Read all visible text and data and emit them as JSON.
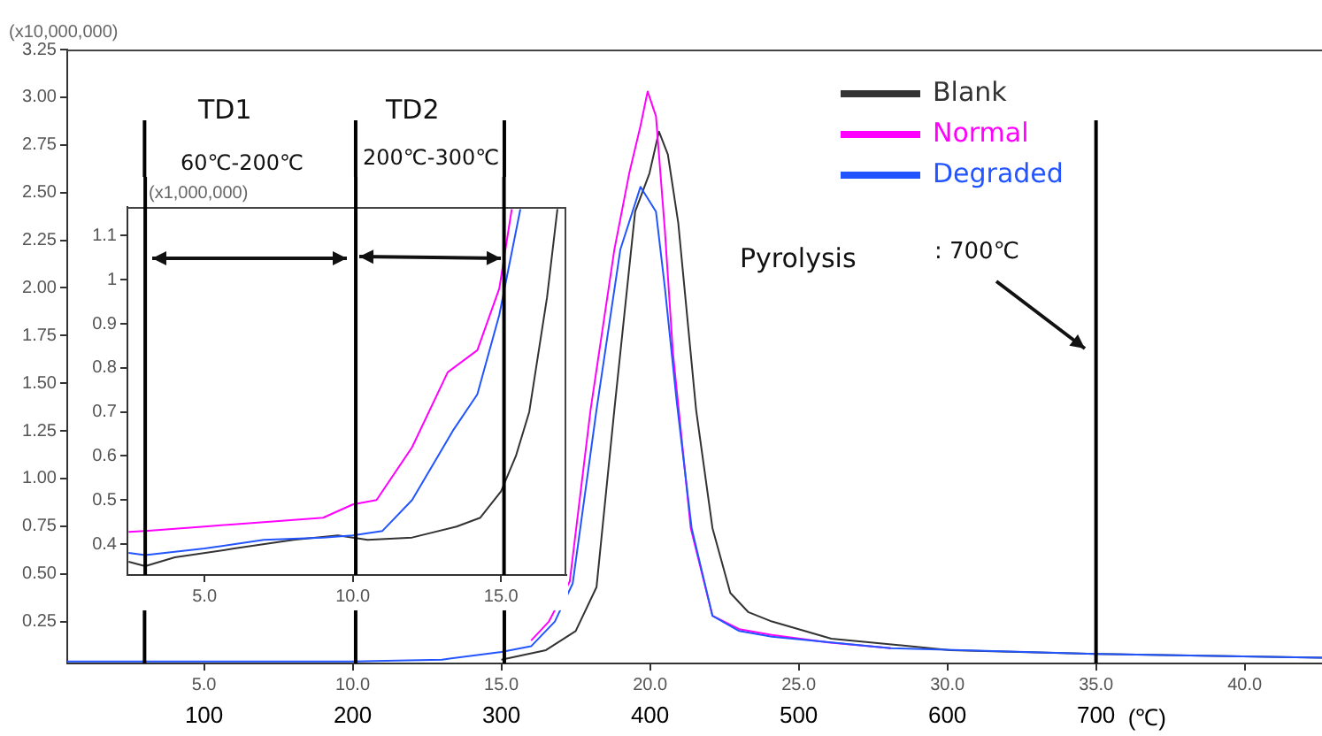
{
  "chart_data": [
    {
      "type": "line",
      "ylabel": "(x10,000,000)",
      "x2label": "(℃)",
      "xlim": [
        0.4,
        42.6
      ],
      "xticks": [
        {
          "value": 5,
          "label": "5.0"
        },
        {
          "value": 10,
          "label": "10.0"
        },
        {
          "value": 15,
          "label": "15.0"
        },
        {
          "value": 20,
          "label": "20.0"
        },
        {
          "value": 25,
          "label": "25.0"
        },
        {
          "value": 30,
          "label": "30.0"
        },
        {
          "value": 35,
          "label": "35.0"
        },
        {
          "value": 40,
          "label": "40.0"
        }
      ],
      "x2lim": [
        8,
        852
      ],
      "x2ticks": [
        100,
        200,
        300,
        400,
        500,
        600,
        700
      ],
      "ylim": [
        0.03,
        3.25
      ],
      "yticks": [
        {
          "value": 0.25,
          "label": "0.25"
        },
        {
          "value": 0.5,
          "label": "0.50"
        },
        {
          "value": 0.75,
          "label": "0.75"
        },
        {
          "value": 1,
          "label": "1.00"
        },
        {
          "value": 1.25,
          "label": "1.25"
        },
        {
          "value": 1.5,
          "label": "1.50"
        },
        {
          "value": 1.75,
          "label": "1.75"
        },
        {
          "value": 2,
          "label": "2.00"
        },
        {
          "value": 2.25,
          "label": "2.25"
        },
        {
          "value": 2.5,
          "label": "2.50"
        },
        {
          "value": 2.75,
          "label": "2.75"
        },
        {
          "value": 3,
          "label": "3.00"
        },
        {
          "value": 3.25,
          "label": "3.25"
        }
      ],
      "series": [
        {
          "name": "Blank",
          "color": "#333333",
          "x": [
            15,
            16.5,
            17.5,
            18.2,
            18.8,
            19.5,
            19.98,
            20.3,
            20.6,
            20.95,
            21.55,
            22.1,
            22.7,
            23.3,
            24.1,
            26.1,
            30.1,
            35,
            42.6
          ],
          "values": [
            0.05,
            0.1,
            0.2,
            0.43,
            1.36,
            2.4,
            2.6,
            2.82,
            2.7,
            2.34,
            1.36,
            0.74,
            0.4,
            0.3,
            0.25,
            0.16,
            0.1,
            0.08,
            0.06
          ]
        },
        {
          "name": "Normal",
          "color": "#ff00ff",
          "x": [
            16,
            16.6,
            17.3,
            18,
            18.8,
            19.3,
            19.68,
            19.92,
            20.2,
            20.5,
            20.77,
            21.37,
            22.1,
            23,
            24.1,
            26,
            28.1
          ],
          "values": [
            0.15,
            0.25,
            0.46,
            1.36,
            2.2,
            2.6,
            2.85,
            3.03,
            2.9,
            2.3,
            1.66,
            0.74,
            0.28,
            0.21,
            0.18,
            0.14,
            0.11
          ]
        },
        {
          "name": "Degraded",
          "color": "#2255ff",
          "x": [
            0.4,
            10,
            13,
            15,
            16,
            16.8,
            17.4,
            18.2,
            19,
            19.68,
            20.2,
            20.5,
            20.9,
            21.4,
            22.1,
            23,
            24.1,
            28.1,
            35,
            42.6
          ],
          "values": [
            0.04,
            0.04,
            0.05,
            0.09,
            0.12,
            0.25,
            0.45,
            1.36,
            2.2,
            2.53,
            2.4,
            2.0,
            1.4,
            0.74,
            0.28,
            0.2,
            0.17,
            0.11,
            0.08,
            0.06
          ]
        }
      ],
      "ref_lines": [
        {
          "axis": "x",
          "value": 3.0
        },
        {
          "axis": "x",
          "value": 10.1
        },
        {
          "axis": "x",
          "value": 15.1
        },
        {
          "axis": "x",
          "value": 35.0
        }
      ],
      "annotations": [
        "TD1",
        "60℃-200℃",
        "TD2",
        "200℃-300℃",
        "Pyrolysis",
        ": 700℃"
      ],
      "legend": "top right"
    },
    {
      "type": "line",
      "ylabel": "(x1,000,000)",
      "xlim": [
        2.4,
        17.2
      ],
      "xticks": [
        {
          "value": 5,
          "label": "5.0"
        },
        {
          "value": 10,
          "label": "10.0"
        },
        {
          "value": 15,
          "label": "15.0"
        }
      ],
      "ylim": [
        0.33,
        1.165
      ],
      "yticks": [
        0.4,
        0.5,
        0.6,
        0.7,
        0.8,
        0.9,
        1.0,
        1.1
      ],
      "series": [
        {
          "color": "#333333",
          "x": [
            2.44,
            3,
            4,
            6,
            8,
            9.5,
            10.5,
            12,
            13.5,
            14.3,
            15,
            15.5,
            15.95,
            16.55,
            16.9
          ],
          "values": [
            0.36,
            0.35,
            0.37,
            0.39,
            0.41,
            0.42,
            0.41,
            0.415,
            0.44,
            0.46,
            0.52,
            0.6,
            0.7,
            0.96,
            1.16
          ]
        },
        {
          "color": "#ff00ff",
          "x": [
            2.44,
            3,
            5,
            7,
            9,
            10,
            10.8,
            12,
            13.2,
            14.2,
            14.94,
            15.36
          ],
          "values": [
            0.428,
            0.43,
            0.44,
            0.45,
            0.46,
            0.49,
            0.5,
            0.62,
            0.79,
            0.84,
            0.98,
            1.16
          ]
        },
        {
          "color": "#2255ff",
          "x": [
            2.44,
            3,
            5,
            7,
            9,
            10,
            11,
            12,
            13.4,
            14.2,
            14.94,
            15.65
          ],
          "values": [
            0.38,
            0.375,
            0.39,
            0.41,
            0.415,
            0.42,
            0.43,
            0.5,
            0.66,
            0.74,
            0.92,
            1.16
          ]
        }
      ],
      "ref_lines": [
        {
          "axis": "x",
          "value": 3.0
        },
        {
          "axis": "x",
          "value": 10.1
        },
        {
          "axis": "x",
          "value": 15.1
        }
      ]
    }
  ]
}
